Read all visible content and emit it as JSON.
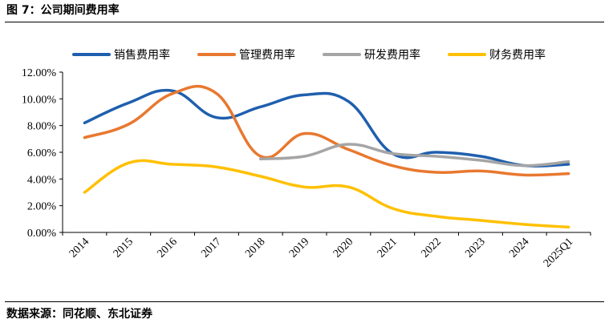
{
  "header": {
    "title": "图 7：公司期间费用率"
  },
  "footer": {
    "source": "数据来源：同花顺、东北证券"
  },
  "chart_data": {
    "type": "line",
    "categories": [
      "2014",
      "2015",
      "2016",
      "2017",
      "2018",
      "2019",
      "2020",
      "2021",
      "2022",
      "2023",
      "2024",
      "2025Q1"
    ],
    "y_ticks": [
      "0.00%",
      "2.00%",
      "4.00%",
      "6.00%",
      "8.00%",
      "10.00%",
      "12.00%"
    ],
    "ylim": [
      0,
      12
    ],
    "grid": false,
    "legend_position": "top",
    "series": [
      {
        "name": "销售费用率",
        "color": "#1F5FAE",
        "values": [
          8.2,
          9.7,
          10.6,
          8.6,
          9.4,
          10.3,
          9.8,
          5.9,
          6.0,
          5.7,
          5.0,
          5.1
        ]
      },
      {
        "name": "管理费用率",
        "color": "#E8782F",
        "values": [
          7.1,
          8.1,
          10.4,
          10.4,
          5.7,
          7.4,
          6.2,
          5.0,
          4.5,
          4.6,
          4.3,
          4.4
        ]
      },
      {
        "name": "研发费用率",
        "color": "#A5A5A5",
        "values": [
          null,
          null,
          null,
          null,
          5.5,
          5.7,
          6.6,
          5.9,
          5.7,
          5.4,
          5.0,
          5.3
        ]
      },
      {
        "name": "财务费用率",
        "color": "#FFC000",
        "values": [
          3.0,
          5.2,
          5.1,
          4.9,
          4.2,
          3.4,
          3.4,
          1.8,
          1.2,
          0.9,
          0.6,
          0.4
        ]
      }
    ]
  }
}
